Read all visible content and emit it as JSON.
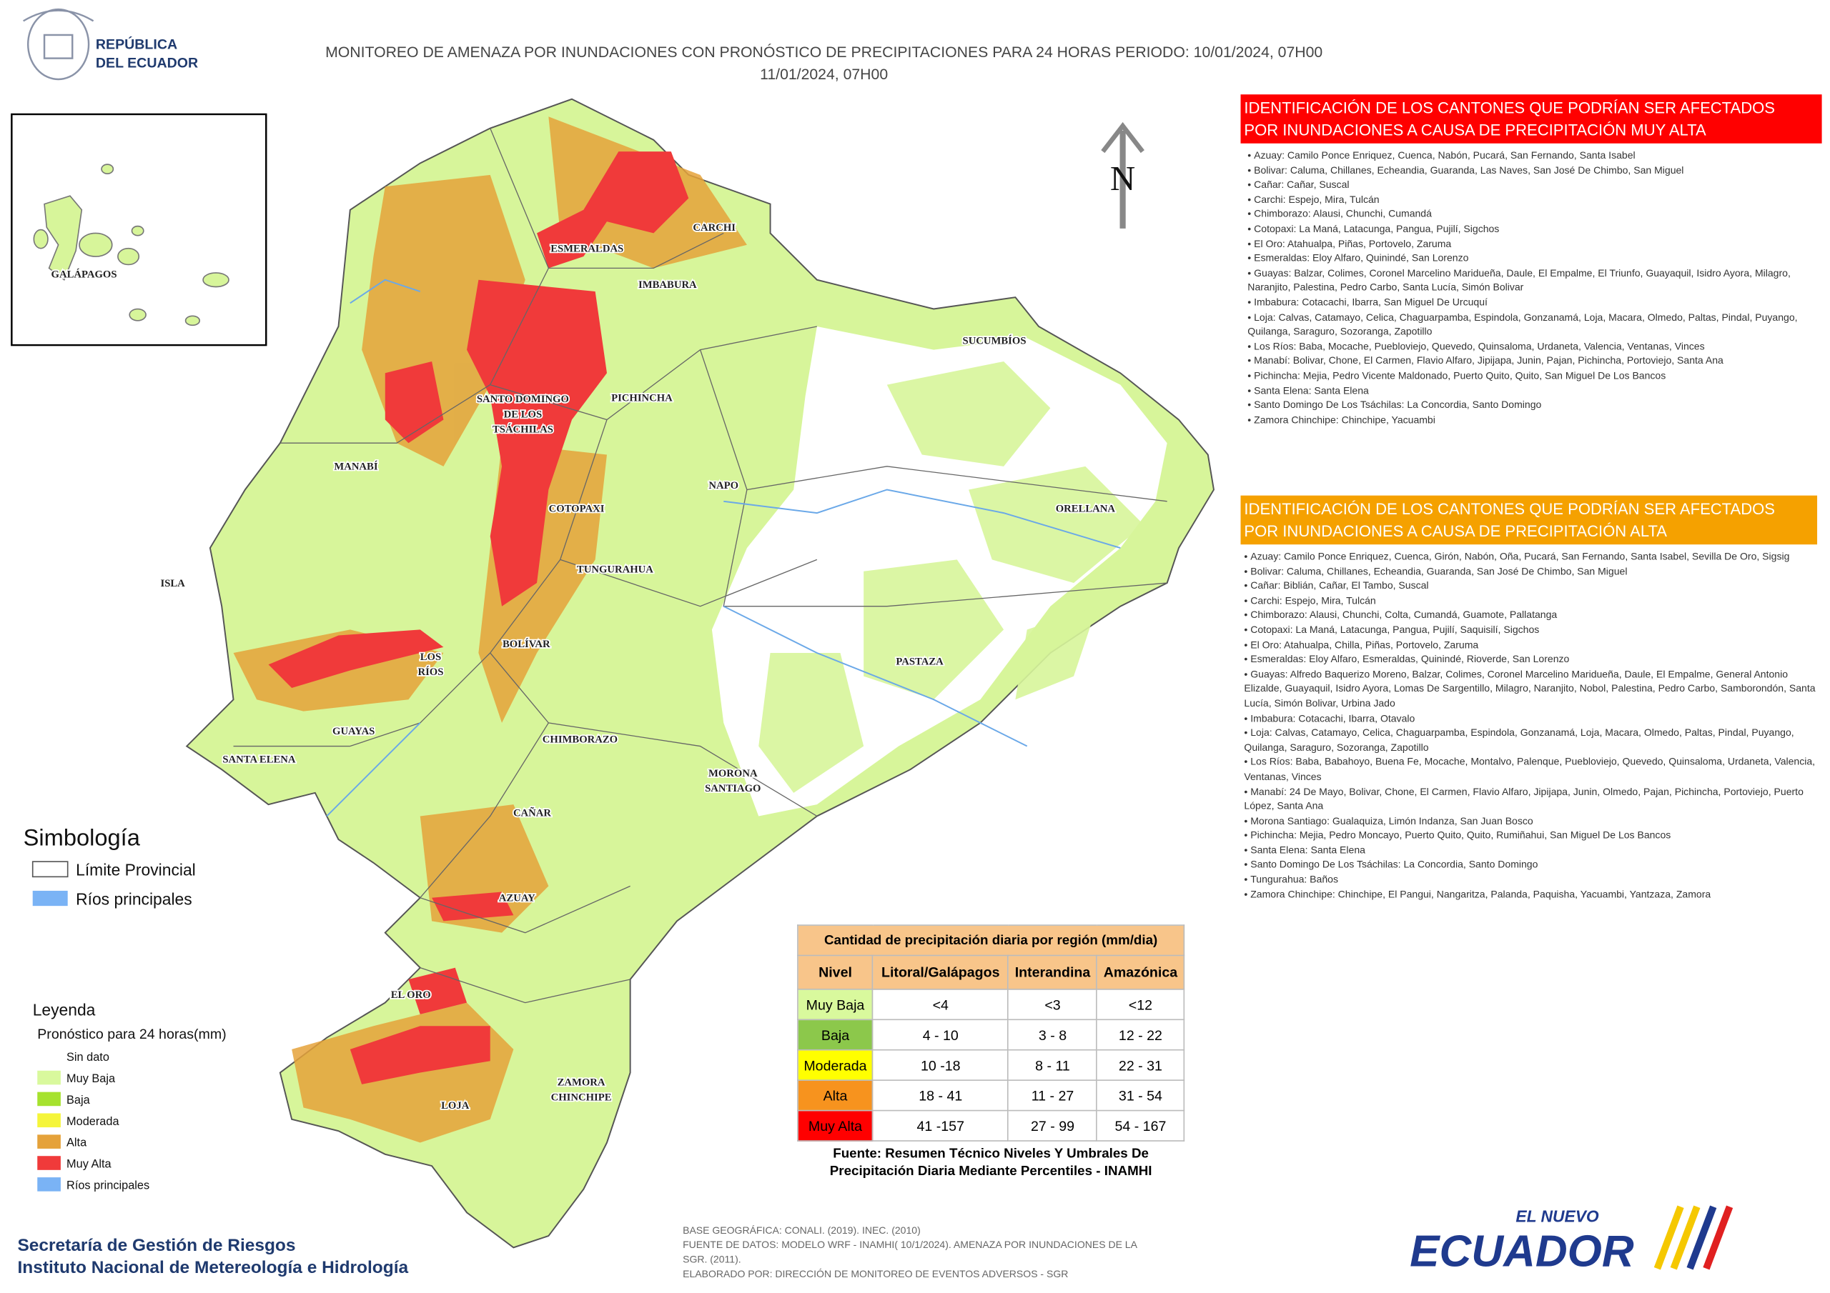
{
  "header": {
    "logo": [
      "REPÚBLICA",
      "DEL ECUADOR"
    ],
    "title": [
      "MONITOREO DE AMENAZA POR INUNDACIONES  CON PRONÓSTICO DE  PRECIPITACIONES PARA 24 HORAS  PERIODO: 10/01/2024, 07H00",
      "11/01/2024, 07H00"
    ]
  },
  "map": {
    "inset_label": "GALÁPAGOS",
    "north": "N",
    "provinces": [
      [
        "CARCHI"
      ],
      [
        "ESMERALDAS"
      ],
      [
        "IMBABURA"
      ],
      [
        "SUCUMBÍOS"
      ],
      [
        "SANTO DOMINGO",
        "DE LOS",
        "TSÁCHILAS"
      ],
      [
        "PICHINCHA"
      ],
      [
        "MANABÍ"
      ],
      [
        "NAPO"
      ],
      [
        "ORELLANA"
      ],
      [
        "COTOPAXI"
      ],
      [
        "ISLA"
      ],
      [
        "TUNGURAHUA"
      ],
      [
        "BOLÍVAR"
      ],
      [
        "LOS",
        "RÍOS"
      ],
      [
        "PASTAZA"
      ],
      [
        "GUAYAS"
      ],
      [
        "CHIMBORAZO"
      ],
      [
        "SANTA ELENA"
      ],
      [
        "MORONA",
        "SANTIAGO"
      ],
      [
        "CAÑAR"
      ],
      [
        "AZUAY"
      ],
      [
        "EL ORO"
      ],
      [
        "ZAMORA",
        "CHINCHIPE"
      ],
      [
        "LOJA"
      ]
    ]
  },
  "panel_muy_alta": {
    "title": [
      "IDENTIFICACIÓN DE LOS CANTONES QUE PODRÍAN SER AFECTADOS",
      "POR INUNDACIONES  A CAUSA DE PRECIPITACIÓN MUY ALTA"
    ],
    "items": [
      "Azuay: Camilo Ponce Enriquez, Cuenca, Nabón, Pucará, San Fernando, Santa Isabel",
      "Bolivar: Caluma, Chillanes, Echeandia, Guaranda, Las Naves, San José De Chimbo, San Miguel",
      "Cañar: Cañar, Suscal",
      "Carchi: Espejo, Mira, Tulcán",
      "Chimborazo: Alausi, Chunchi, Cumandá",
      "Cotopaxi: La Maná, Latacunga, Pangua, Pujilí, Sigchos",
      "El Oro: Atahualpa, Piñas, Portovelo, Zaruma",
      "Esmeraldas: Eloy Alfaro, Quinindé, San Lorenzo",
      "Guayas: Balzar, Colimes, Coronel Marcelino Maridueña, Daule, El Empalme, El Triunfo, Guayaquil, Isidro Ayora, Milagro, Naranjito, Palestina, Pedro Carbo, Santa Lucía, Simón Bolivar",
      "Imbabura: Cotacachi, Ibarra, San Miguel De Urcuquí",
      "Loja: Calvas, Catamayo, Celica, Chaguarpamba, Espindola, Gonzanamá, Loja, Macara, Olmedo, Paltas, Pindal, Puyango, Quilanga, Saraguro, Sozoranga, Zapotillo",
      "Los Ríos: Baba, Mocache, Puebloviejo, Quevedo, Quinsaloma, Urdaneta, Valencia, Ventanas, Vinces",
      "Manabí: Bolivar, Chone, El Carmen, Flavio Alfaro, Jipijapa, Junin, Pajan, Pichincha, Portoviejo, Santa Ana",
      "Pichincha: Mejia, Pedro Vicente Maldonado, Puerto Quito, Quito, San Miguel De Los Bancos",
      "Santa Elena: Santa Elena",
      "Santo Domingo De Los Tsáchilas: La Concordia, Santo Domingo",
      "Zamora Chinchipe: Chinchipe, Yacuambi"
    ]
  },
  "panel_alta": {
    "title": [
      "IDENTIFICACIÓN DE LOS CANTONES QUE  PODRÍAN SER AFECTADOS",
      "POR INUNDACIONES  A CAUSA DE PRECIPITACIÓN  ALTA"
    ],
    "items": [
      "Azuay: Camilo Ponce Enriquez, Cuenca, Girón, Nabón, Oña, Pucará, San Fernando, Santa Isabel, Sevilla De Oro, Sigsig",
      "Bolivar: Caluma, Chillanes, Echeandia, Guaranda, San José De Chimbo, San Miguel",
      "Cañar: Biblián, Cañar, El Tambo, Suscal",
      "Carchi: Espejo, Mira, Tulcán",
      "Chimborazo: Alausi, Chunchi, Colta, Cumandá, Guamote, Pallatanga",
      "Cotopaxi: La Maná, Latacunga, Pangua, Pujilí, Saquisilí, Sigchos",
      "El Oro: Atahualpa, Chilla, Piñas, Portovelo, Zaruma",
      "Esmeraldas: Eloy Alfaro, Esmeraldas, Quinindé, Rioverde, San Lorenzo",
      "Guayas: Alfredo Baquerizo Moreno, Balzar, Colimes, Coronel Marcelino Maridueña, Daule, El Empalme, General Antonio Elizalde, Guayaquil, Isidro Ayora, Lomas De Sargentillo, Milagro, Naranjito, Nobol, Palestina, Pedro Carbo, Samborondón, Santa Lucía, Simón Bolivar, Urbina Jado",
      "Imbabura: Cotacachi, Ibarra, Otavalo",
      "Loja: Calvas, Catamayo, Celica, Chaguarpamba, Espindola, Gonzanamá, Loja, Macara, Olmedo, Paltas, Pindal, Puyango, Quilanga, Saraguro, Sozoranga, Zapotillo",
      "Los Ríos: Baba, Babahoyo, Buena Fe, Mocache, Montalvo, Palenque, Puebloviejo, Quevedo, Quinsaloma, Urdaneta, Valencia, Ventanas, Vinces",
      "Manabí: 24 De Mayo, Bolivar, Chone, El Carmen, Flavio Alfaro, Jipijapa, Junin, Olmedo, Pajan, Pichincha, Portoviejo, Puerto López, Santa Ana",
      "Morona Santiago: Gualaquiza, Limón Indanza, San Juan Bosco",
      "Pichincha: Mejia, Pedro Moncayo, Puerto Quito, Quito, Rumiñahui, San Miguel De Los Bancos",
      "Santa Elena: Santa Elena",
      "Santo Domingo De Los Tsáchilas: La Concordia, Santo Domingo",
      "Tungurahua: Baños",
      "Zamora Chinchipe: Chinchipe, El Pangui, Nangaritza, Palanda, Paquisha, Yacuambi, Yantzaza, Zamora"
    ]
  },
  "simbologia": {
    "title": "Simbología",
    "items": [
      "Límite Provincial",
      "Ríos principales"
    ]
  },
  "leyenda": {
    "title": "Leyenda",
    "subtitle": "Pronóstico para 24 horas(mm)",
    "items": [
      "Sin dato",
      "Muy Baja",
      "Baja",
      "Moderada",
      "Alta",
      "Muy Alta",
      "Ríos principales"
    ]
  },
  "table": {
    "title": "Cantidad de precipitación diaria por región (mm/dia)",
    "headers": [
      "Nivel",
      "Litoral/Galápagos",
      "Interandina",
      "Amazónica"
    ],
    "rows": [
      [
        "Muy Baja",
        "<4",
        "<3",
        "<12"
      ],
      [
        "Baja",
        "4 - 10",
        "3 - 8",
        "12 - 22"
      ],
      [
        "Moderada",
        "10 -18",
        "8 - 11",
        "22 - 31"
      ],
      [
        "Alta",
        "18 - 41",
        "11 - 27",
        "31 - 54"
      ],
      [
        "Muy Alta",
        "41 -157",
        "27 - 99",
        "54 - 167"
      ]
    ],
    "source": [
      "Fuente: Resumen Técnico Niveles Y Umbrales De",
      "Precipitación Diaria Mediante Percentiles - INAMHI"
    ]
  },
  "footer": {
    "org": [
      "Secretaría de Gestión de Riesgos",
      "Instituto Nacional de Metereología e Hidrología"
    ],
    "notes": [
      "BASE GEOGRÁFICA: CONALI. (2019). INEC. (2010)",
      "FUENTE DE DATOS: MODELO WRF - INAMHI( 10/1/2024).  AMENAZA POR INUNDACIONES DE LA",
      "SGR. (2011).",
      "ELABORADO POR: DIRECCIÓN DE MONITOREO DE EVENTOS ADVERSOS - SGR"
    ],
    "logo": [
      "EL NUEVO",
      "ECUADOR"
    ]
  }
}
